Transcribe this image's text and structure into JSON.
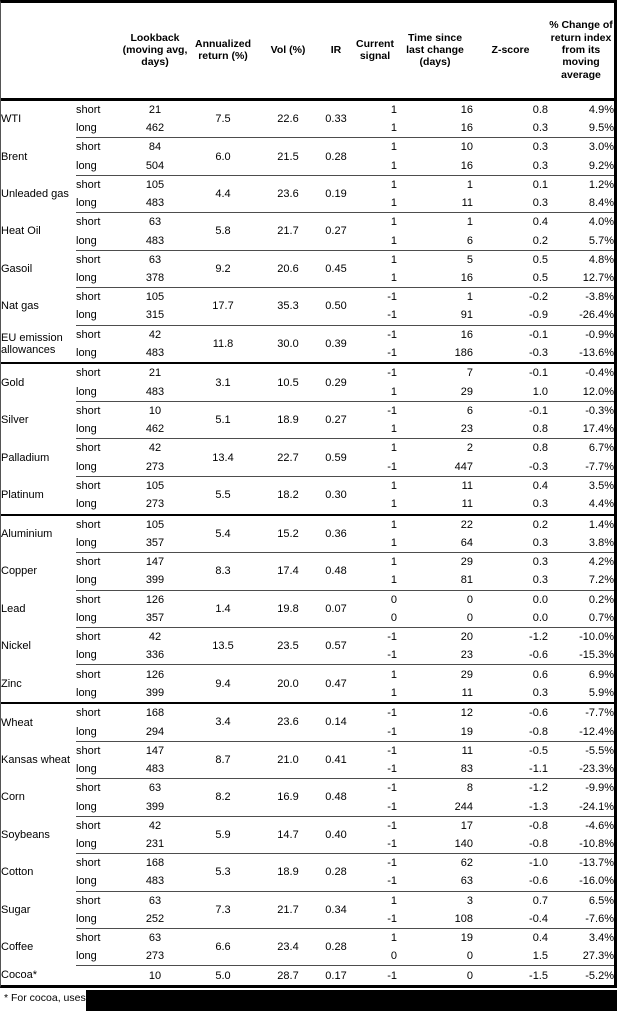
{
  "table": {
    "columns": [
      {
        "key": "name",
        "label": ""
      },
      {
        "key": "pos",
        "label": ""
      },
      {
        "key": "lookback",
        "label": "Lookback (moving avg, days)"
      },
      {
        "key": "ann",
        "label": "Annualized return (%)"
      },
      {
        "key": "vol",
        "label": "Vol (%)"
      },
      {
        "key": "ir",
        "label": "IR"
      },
      {
        "key": "signal",
        "label": "Current signal"
      },
      {
        "key": "time",
        "label": "Time since last change (days)"
      },
      {
        "key": "zscore",
        "label": "Z-score"
      },
      {
        "key": "pct",
        "label": "% Change of return index from its moving average"
      }
    ],
    "groups": [
      {
        "name": "energy",
        "commodities": [
          {
            "name": "WTI",
            "ann": "7.5",
            "vol": "22.6",
            "ir": "0.33",
            "rows": [
              {
                "pos": "short",
                "lookback": "21",
                "signal": "1",
                "time": "16",
                "zscore": "0.8",
                "pct": "4.9%"
              },
              {
                "pos": "long",
                "lookback": "462",
                "signal": "1",
                "time": "16",
                "zscore": "0.3",
                "pct": "9.5%"
              }
            ]
          },
          {
            "name": "Brent",
            "ann": "6.0",
            "vol": "21.5",
            "ir": "0.28",
            "rows": [
              {
                "pos": "short",
                "lookback": "84",
                "signal": "1",
                "time": "10",
                "zscore": "0.3",
                "pct": "3.0%"
              },
              {
                "pos": "long",
                "lookback": "504",
                "signal": "1",
                "time": "16",
                "zscore": "0.3",
                "pct": "9.2%"
              }
            ]
          },
          {
            "name": "Unleaded gas",
            "ann": "4.4",
            "vol": "23.6",
            "ir": "0.19",
            "rows": [
              {
                "pos": "short",
                "lookback": "105",
                "signal": "1",
                "time": "1",
                "zscore": "0.1",
                "pct": "1.2%"
              },
              {
                "pos": "long",
                "lookback": "483",
                "signal": "1",
                "time": "11",
                "zscore": "0.3",
                "pct": "8.4%"
              }
            ]
          },
          {
            "name": "Heat Oil",
            "ann": "5.8",
            "vol": "21.7",
            "ir": "0.27",
            "rows": [
              {
                "pos": "short",
                "lookback": "63",
                "signal": "1",
                "time": "1",
                "zscore": "0.4",
                "pct": "4.0%"
              },
              {
                "pos": "long",
                "lookback": "483",
                "signal": "1",
                "time": "6",
                "zscore": "0.2",
                "pct": "5.7%"
              }
            ]
          },
          {
            "name": "Gasoil",
            "ann": "9.2",
            "vol": "20.6",
            "ir": "0.45",
            "rows": [
              {
                "pos": "short",
                "lookback": "63",
                "signal": "1",
                "time": "5",
                "zscore": "0.5",
                "pct": "4.8%"
              },
              {
                "pos": "long",
                "lookback": "378",
                "signal": "1",
                "time": "16",
                "zscore": "0.5",
                "pct": "12.7%"
              }
            ]
          },
          {
            "name": "Nat gas",
            "ann": "17.7",
            "vol": "35.3",
            "ir": "0.50",
            "rows": [
              {
                "pos": "short",
                "lookback": "105",
                "signal": "-1",
                "time": "1",
                "zscore": "-0.2",
                "pct": "-3.8%"
              },
              {
                "pos": "long",
                "lookback": "315",
                "signal": "-1",
                "time": "91",
                "zscore": "-0.9",
                "pct": "-26.4%"
              }
            ]
          },
          {
            "name": "EU emission allowances",
            "ann": "11.8",
            "vol": "30.0",
            "ir": "0.39",
            "rows": [
              {
                "pos": "short",
                "lookback": "42",
                "signal": "-1",
                "time": "16",
                "zscore": "-0.1",
                "pct": "-0.9%"
              },
              {
                "pos": "long",
                "lookback": "483",
                "signal": "-1",
                "time": "186",
                "zscore": "-0.3",
                "pct": "-13.6%"
              }
            ]
          }
        ]
      },
      {
        "name": "precious-metals",
        "commodities": [
          {
            "name": "Gold",
            "ann": "3.1",
            "vol": "10.5",
            "ir": "0.29",
            "rows": [
              {
                "pos": "short",
                "lookback": "21",
                "signal": "-1",
                "time": "7",
                "zscore": "-0.1",
                "pct": "-0.4%"
              },
              {
                "pos": "long",
                "lookback": "483",
                "signal": "1",
                "time": "29",
                "zscore": "1.0",
                "pct": "12.0%"
              }
            ]
          },
          {
            "name": "Silver",
            "ann": "5.1",
            "vol": "18.9",
            "ir": "0.27",
            "rows": [
              {
                "pos": "short",
                "lookback": "10",
                "signal": "-1",
                "time": "6",
                "zscore": "-0.1",
                "pct": "-0.3%"
              },
              {
                "pos": "long",
                "lookback": "462",
                "signal": "1",
                "time": "23",
                "zscore": "0.8",
                "pct": "17.4%"
              }
            ]
          },
          {
            "name": "Palladium",
            "ann": "13.4",
            "vol": "22.7",
            "ir": "0.59",
            "rows": [
              {
                "pos": "short",
                "lookback": "42",
                "signal": "1",
                "time": "2",
                "zscore": "0.8",
                "pct": "6.7%"
              },
              {
                "pos": "long",
                "lookback": "273",
                "signal": "-1",
                "time": "447",
                "zscore": "-0.3",
                "pct": "-7.7%"
              }
            ]
          },
          {
            "name": "Platinum",
            "ann": "5.5",
            "vol": "18.2",
            "ir": "0.30",
            "rows": [
              {
                "pos": "short",
                "lookback": "105",
                "signal": "1",
                "time": "11",
                "zscore": "0.4",
                "pct": "3.5%"
              },
              {
                "pos": "long",
                "lookback": "273",
                "signal": "1",
                "time": "11",
                "zscore": "0.3",
                "pct": "4.4%"
              }
            ]
          }
        ]
      },
      {
        "name": "base-metals",
        "commodities": [
          {
            "name": "Aluminium",
            "ann": "5.4",
            "vol": "15.2",
            "ir": "0.36",
            "rows": [
              {
                "pos": "short",
                "lookback": "105",
                "signal": "1",
                "time": "22",
                "zscore": "0.2",
                "pct": "1.4%"
              },
              {
                "pos": "long",
                "lookback": "357",
                "signal": "1",
                "time": "64",
                "zscore": "0.3",
                "pct": "3.8%"
              }
            ]
          },
          {
            "name": "Copper",
            "ann": "8.3",
            "vol": "17.4",
            "ir": "0.48",
            "rows": [
              {
                "pos": "short",
                "lookback": "147",
                "signal": "1",
                "time": "29",
                "zscore": "0.3",
                "pct": "4.2%"
              },
              {
                "pos": "long",
                "lookback": "399",
                "signal": "1",
                "time": "81",
                "zscore": "0.3",
                "pct": "7.2%"
              }
            ]
          },
          {
            "name": "Lead",
            "ann": "1.4",
            "vol": "19.8",
            "ir": "0.07",
            "rows": [
              {
                "pos": "short",
                "lookback": "126",
                "signal": "0",
                "time": "0",
                "zscore": "0.0",
                "pct": "0.2%"
              },
              {
                "pos": "long",
                "lookback": "357",
                "signal": "0",
                "time": "0",
                "zscore": "0.0",
                "pct": "0.7%"
              }
            ]
          },
          {
            "name": "Nickel",
            "ann": "13.5",
            "vol": "23.5",
            "ir": "0.57",
            "rows": [
              {
                "pos": "short",
                "lookback": "42",
                "signal": "-1",
                "time": "20",
                "zscore": "-1.2",
                "pct": "-10.0%"
              },
              {
                "pos": "long",
                "lookback": "336",
                "signal": "-1",
                "time": "23",
                "zscore": "-0.6",
                "pct": "-15.3%"
              }
            ]
          },
          {
            "name": "Zinc",
            "ann": "9.4",
            "vol": "20.0",
            "ir": "0.47",
            "rows": [
              {
                "pos": "short",
                "lookback": "126",
                "signal": "1",
                "time": "29",
                "zscore": "0.6",
                "pct": "6.9%"
              },
              {
                "pos": "long",
                "lookback": "399",
                "signal": "1",
                "time": "11",
                "zscore": "0.3",
                "pct": "5.9%"
              }
            ]
          }
        ]
      },
      {
        "name": "agriculture",
        "commodities": [
          {
            "name": "Wheat",
            "ann": "3.4",
            "vol": "23.6",
            "ir": "0.14",
            "rows": [
              {
                "pos": "short",
                "lookback": "168",
                "signal": "-1",
                "time": "12",
                "zscore": "-0.6",
                "pct": "-7.7%"
              },
              {
                "pos": "long",
                "lookback": "294",
                "signal": "-1",
                "time": "19",
                "zscore": "-0.8",
                "pct": "-12.4%"
              }
            ]
          },
          {
            "name": "Kansas wheat",
            "ann": "8.7",
            "vol": "21.0",
            "ir": "0.41",
            "rows": [
              {
                "pos": "short",
                "lookback": "147",
                "signal": "-1",
                "time": "11",
                "zscore": "-0.5",
                "pct": "-5.5%"
              },
              {
                "pos": "long",
                "lookback": "483",
                "signal": "-1",
                "time": "83",
                "zscore": "-1.1",
                "pct": "-23.3%"
              }
            ]
          },
          {
            "name": "Corn",
            "ann": "8.2",
            "vol": "16.9",
            "ir": "0.48",
            "rows": [
              {
                "pos": "short",
                "lookback": "63",
                "signal": "-1",
                "time": "8",
                "zscore": "-1.2",
                "pct": "-9.9%"
              },
              {
                "pos": "long",
                "lookback": "399",
                "signal": "-1",
                "time": "244",
                "zscore": "-1.3",
                "pct": "-24.1%"
              }
            ]
          },
          {
            "name": "Soybeans",
            "ann": "5.9",
            "vol": "14.7",
            "ir": "0.40",
            "rows": [
              {
                "pos": "short",
                "lookback": "42",
                "signal": "-1",
                "time": "17",
                "zscore": "-0.8",
                "pct": "-4.6%"
              },
              {
                "pos": "long",
                "lookback": "231",
                "signal": "-1",
                "time": "140",
                "zscore": "-0.8",
                "pct": "-10.8%"
              }
            ]
          },
          {
            "name": "Cotton",
            "ann": "5.3",
            "vol": "18.9",
            "ir": "0.28",
            "rows": [
              {
                "pos": "short",
                "lookback": "168",
                "signal": "-1",
                "time": "62",
                "zscore": "-1.0",
                "pct": "-13.7%"
              },
              {
                "pos": "long",
                "lookback": "483",
                "signal": "-1",
                "time": "63",
                "zscore": "-0.6",
                "pct": "-16.0%"
              }
            ]
          },
          {
            "name": "Sugar",
            "ann": "7.3",
            "vol": "21.7",
            "ir": "0.34",
            "rows": [
              {
                "pos": "short",
                "lookback": "63",
                "signal": "1",
                "time": "3",
                "zscore": "0.7",
                "pct": "6.5%"
              },
              {
                "pos": "long",
                "lookback": "252",
                "signal": "-1",
                "time": "108",
                "zscore": "-0.4",
                "pct": "-7.6%"
              }
            ]
          },
          {
            "name": "Coffee",
            "ann": "6.6",
            "vol": "23.4",
            "ir": "0.28",
            "rows": [
              {
                "pos": "short",
                "lookback": "63",
                "signal": "1",
                "time": "19",
                "zscore": "0.4",
                "pct": "3.4%"
              },
              {
                "pos": "long",
                "lookback": "273",
                "signal": "0",
                "time": "0",
                "zscore": "1.5",
                "pct": "27.3%"
              }
            ]
          },
          {
            "name": "Cocoa*",
            "ann": "5.0",
            "vol": "28.7",
            "ir": "0.17",
            "rows": [
              {
                "pos": "",
                "lookback": "10",
                "signal": "-1",
                "time": "0",
                "zscore": "-1.5",
                "pct": "-5.2%"
              }
            ]
          }
        ]
      }
    ],
    "footnote": "* For cocoa, uses o"
  }
}
